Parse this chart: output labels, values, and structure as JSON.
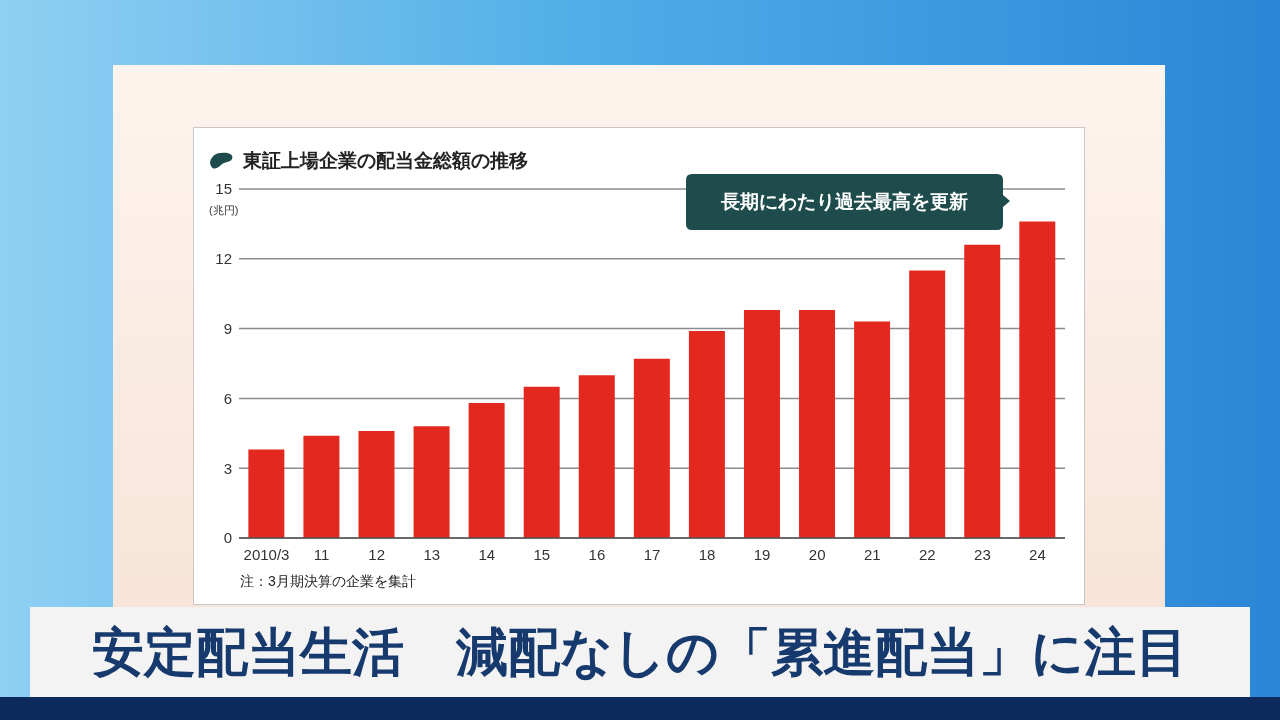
{
  "chart_data": {
    "type": "bar",
    "title": "東証上場企業の配当金総額の推移",
    "ylabel": "(兆円)",
    "categories": [
      "2010/3",
      "11",
      "12",
      "13",
      "14",
      "15",
      "16",
      "17",
      "18",
      "19",
      "20",
      "21",
      "22",
      "23",
      "24"
    ],
    "values": [
      3.8,
      4.4,
      4.6,
      4.8,
      5.8,
      6.5,
      7.0,
      7.7,
      8.9,
      9.8,
      9.8,
      9.3,
      11.5,
      12.6,
      13.6
    ],
    "color": "#e3281f",
    "ylim": [
      0,
      15
    ],
    "yticks": [
      0,
      3,
      6,
      9,
      12,
      15
    ],
    "grid": "y",
    "annotations": [
      "長期にわたり過去最高を更新",
      "注：3月期決算の企業を集計",
      "安定配当生活　減配なしの「累進配当」に注目"
    ]
  }
}
